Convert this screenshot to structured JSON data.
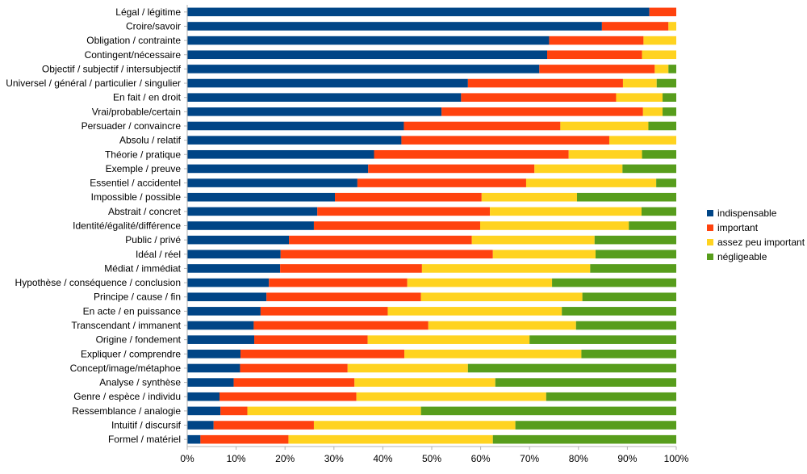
{
  "chart_data": {
    "type": "bar",
    "orientation": "horizontal",
    "stacked": "percent",
    "categories": [
      "Légal / légitime",
      "Croire/savoir",
      "Obligation / contrainte",
      "Contingent/nécessaire",
      "Objectif / subjectif / intersubjectif",
      "Universel / général / particulier / singulier",
      "En fait / en droit",
      "Vrai/probable/certain",
      "Persuader / convaincre",
      "Absolu / relatif",
      "Théorie / pratique",
      "Exemple / preuve",
      "Essentiel / accidentel",
      "Impossible / possible",
      "Abstrait / concret",
      "Identité/égalité/différence",
      "Public / privé",
      "Idéal / réel",
      "Médiat / immédiat",
      "Hypothèse / conséquence / conclusion",
      "Principe / cause / fin",
      "En acte / en puissance",
      "Transcendant / immanent",
      "Origine / fondement",
      "Expliquer / comprendre",
      "Concept/image/métaphoe",
      "Analyse / synthèse",
      "Genre / espèce / individu",
      "Ressemblance / analogie",
      "Intuitif / discursif",
      "Formel / matériel"
    ],
    "series": [
      {
        "name": "indispensable",
        "color": "#004586",
        "values": [
          94.5,
          84.8,
          74.0,
          73.6,
          72.0,
          57.4,
          56.0,
          52.0,
          44.3,
          43.8,
          38.2,
          37.0,
          34.8,
          30.2,
          26.6,
          25.9,
          20.8,
          19.1,
          19.0,
          16.7,
          16.2,
          15.0,
          13.6,
          13.7,
          10.9,
          10.8,
          9.5,
          6.6,
          6.8,
          5.4,
          2.7
        ]
      },
      {
        "name": "important",
        "color": "#ff420e",
        "values": [
          5.5,
          13.6,
          19.3,
          19.4,
          23.6,
          31.7,
          31.7,
          41.2,
          32.0,
          42.5,
          39.8,
          34.0,
          34.5,
          30.0,
          35.3,
          34.0,
          37.4,
          43.4,
          29.0,
          28.3,
          31.6,
          26.0,
          35.7,
          23.2,
          33.5,
          22.0,
          24.7,
          28.0,
          5.5,
          20.5,
          18.0
        ]
      },
      {
        "name": "assez peu important",
        "color": "#ffd320",
        "values": [
          0.0,
          1.6,
          6.7,
          7.0,
          2.8,
          6.9,
          9.5,
          4.0,
          18.0,
          13.7,
          15.0,
          18.0,
          26.6,
          19.5,
          31.0,
          30.4,
          25.1,
          21.0,
          34.4,
          29.6,
          33.0,
          35.6,
          30.2,
          33.1,
          36.2,
          24.6,
          28.8,
          38.8,
          35.5,
          41.2,
          41.8
        ]
      },
      {
        "name": "négligeable",
        "color": "#579d1c",
        "values": [
          0.0,
          0.0,
          0.0,
          0.0,
          1.6,
          4.0,
          2.8,
          2.8,
          5.7,
          0.0,
          7.0,
          11.0,
          4.1,
          20.3,
          7.1,
          9.7,
          16.7,
          16.5,
          17.6,
          25.4,
          19.2,
          23.4,
          20.5,
          30.0,
          19.4,
          42.6,
          37.0,
          26.6,
          52.2,
          32.9,
          37.5
        ]
      }
    ],
    "xaxis": {
      "ticks": [
        "0%",
        "10%",
        "20%",
        "30%",
        "40%",
        "50%",
        "60%",
        "70%",
        "80%",
        "90%",
        "100%"
      ],
      "range": [
        0,
        100
      ]
    },
    "grid": false,
    "legend_position": "right"
  }
}
